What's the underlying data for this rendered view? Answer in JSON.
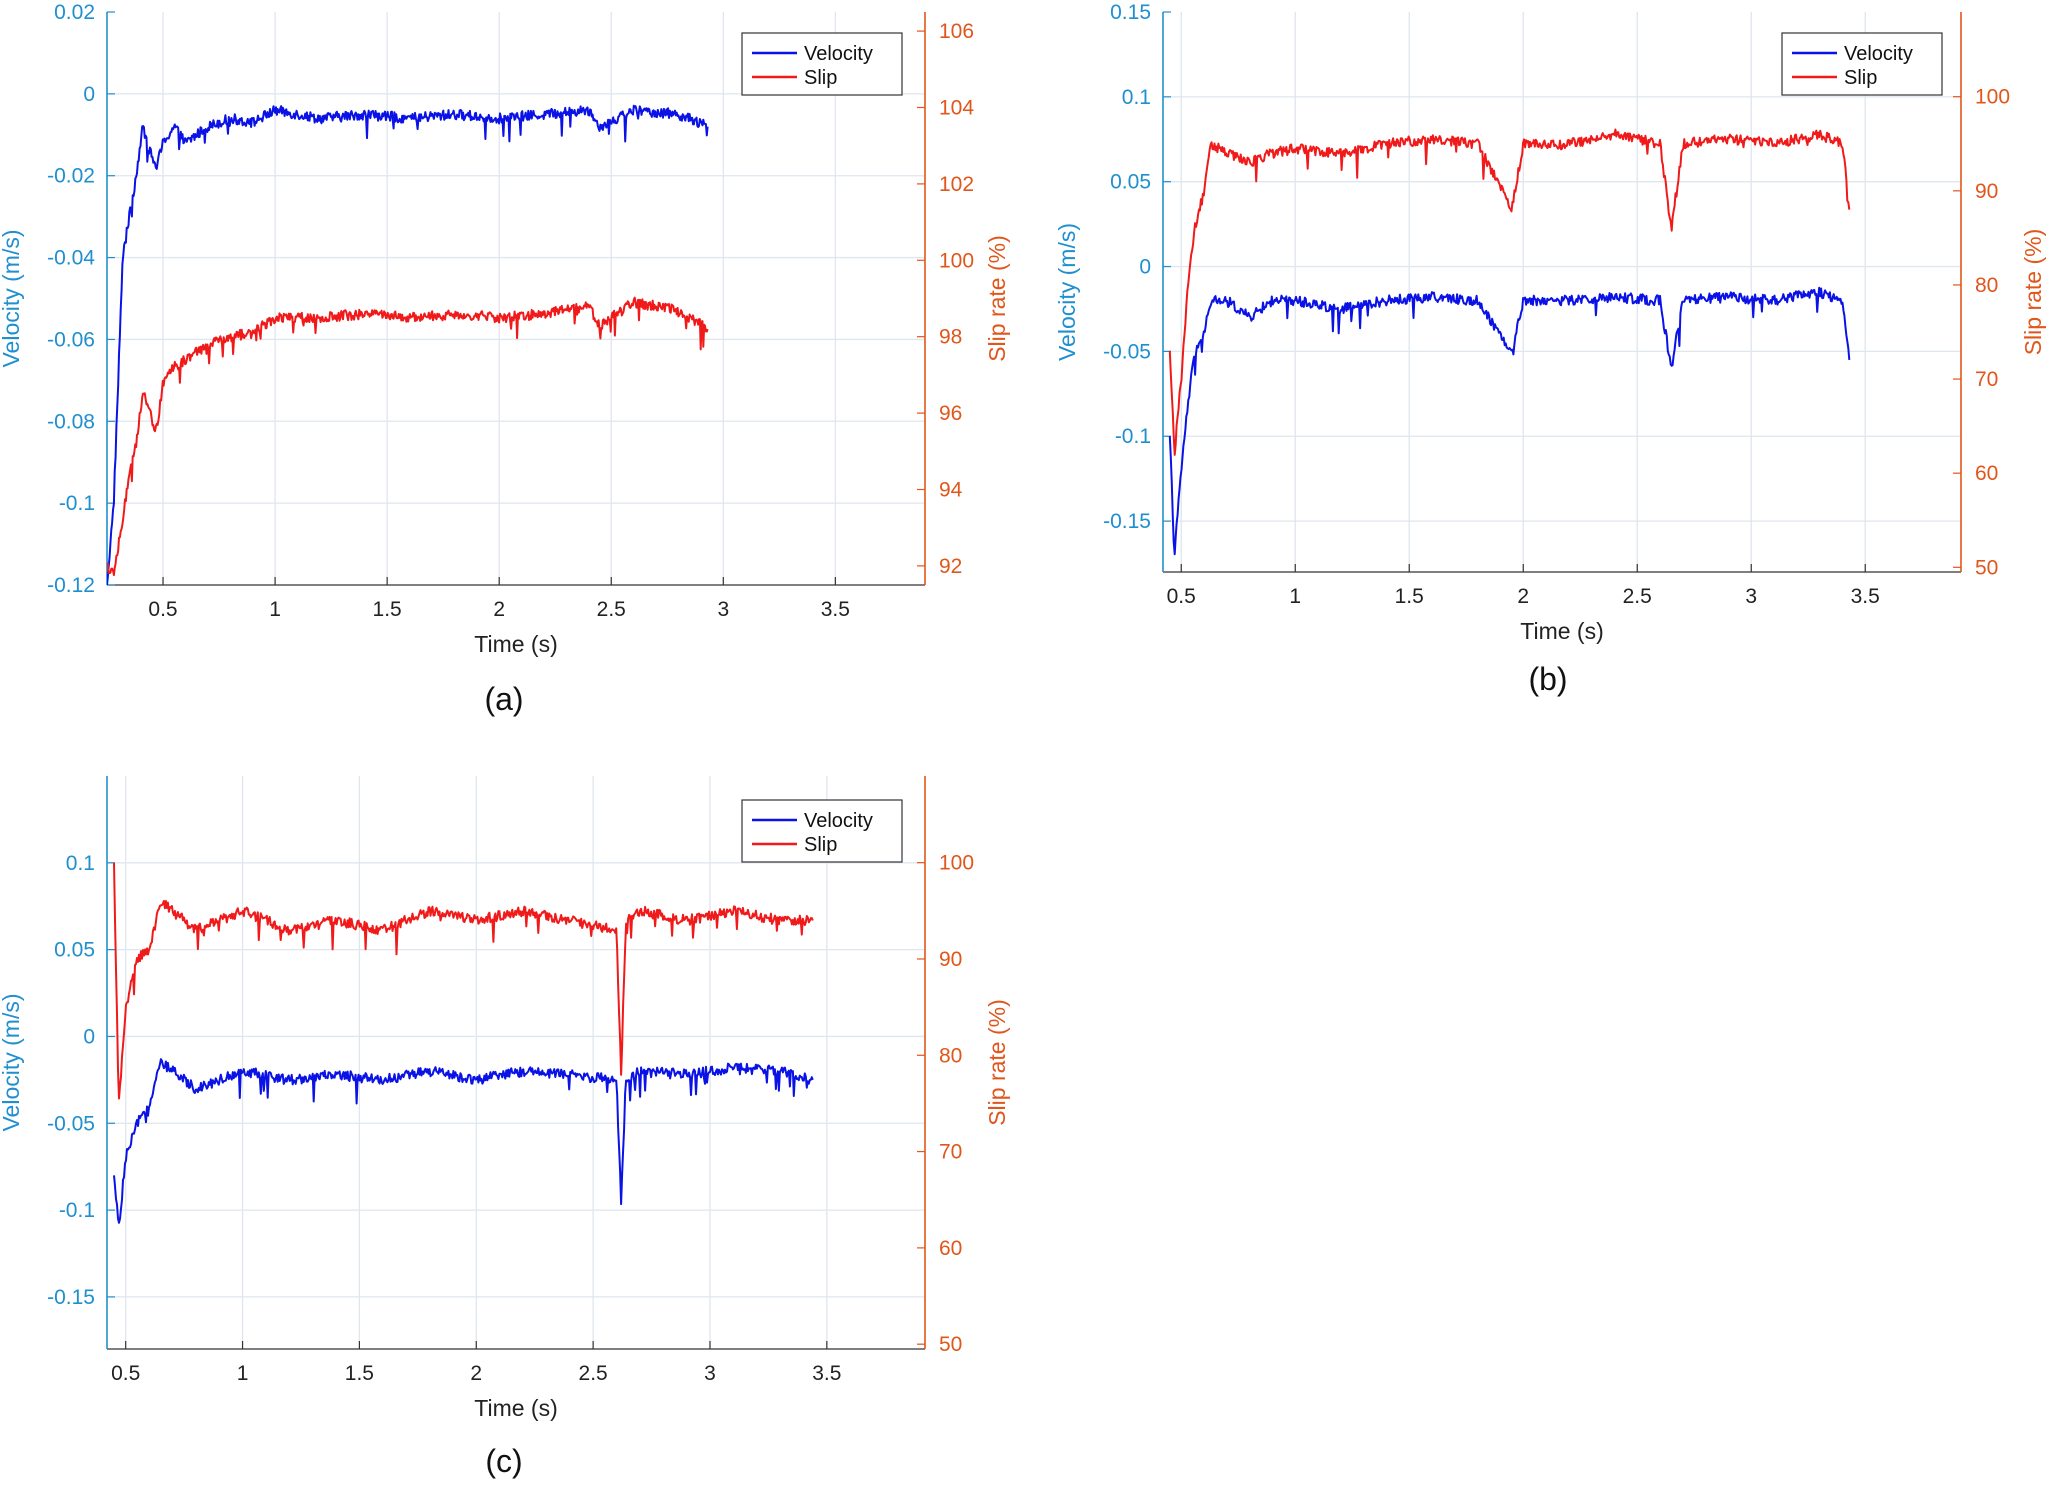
{
  "colors": {
    "left_axis": "#1f8fcf",
    "right_axis": "#e0561b",
    "velocity": "#0a12e6",
    "slip": "#f01a1a",
    "grid": "#dfe6ee"
  },
  "chart_data": [
    {
      "panel": "(a)",
      "type": "line",
      "xlabel": "Time (s)",
      "ylabel": "Velocity (m/s)",
      "y2label": "Slip rate (%)",
      "xlim": [
        0.25,
        3.9
      ],
      "ylim": [
        -0.12,
        0.02
      ],
      "y2lim": [
        91.5,
        106.5
      ],
      "xticks": [
        0.5,
        1,
        1.5,
        2,
        2.5,
        3,
        3.5
      ],
      "xtick_labels": [
        "0.5",
        "1",
        "1.5",
        "2",
        "2.5",
        "3",
        "3.5"
      ],
      "yticks": [
        -0.12,
        -0.1,
        -0.08,
        -0.06,
        -0.04,
        -0.02,
        0,
        0.02
      ],
      "ytick_labels": [
        "-0.12",
        "-0.1",
        "-0.08",
        "-0.06",
        "-0.04",
        "-0.02",
        "0",
        "0.02"
      ],
      "y2ticks": [
        92,
        94,
        96,
        98,
        100,
        102,
        104,
        106
      ],
      "y2tick_labels": [
        "92",
        "94",
        "96",
        "98",
        "100",
        "102",
        "104",
        "106"
      ],
      "grid": true,
      "legend": "top-right",
      "series": [
        {
          "name": "Velocity",
          "axis": "left",
          "x": [
            0.25,
            0.28,
            0.32,
            0.35,
            0.38,
            0.41,
            0.44,
            0.47,
            0.5,
            0.55,
            0.6,
            0.7,
            0.8,
            0.9,
            1.0,
            1.2,
            1.4,
            1.6,
            1.8,
            2.0,
            2.2,
            2.4,
            2.45,
            2.6,
            2.8,
            2.93
          ],
          "y": [
            -0.12,
            -0.1,
            -0.04,
            -0.03,
            -0.02,
            -0.008,
            -0.014,
            -0.018,
            -0.012,
            -0.008,
            -0.012,
            -0.008,
            -0.006,
            -0.007,
            -0.004,
            -0.006,
            -0.005,
            -0.006,
            -0.005,
            -0.006,
            -0.005,
            -0.004,
            -0.008,
            -0.004,
            -0.005,
            -0.008
          ]
        },
        {
          "name": "Slip",
          "axis": "right",
          "x": [
            0.25,
            0.28,
            0.32,
            0.35,
            0.38,
            0.41,
            0.44,
            0.47,
            0.5,
            0.55,
            0.6,
            0.7,
            0.8,
            0.9,
            1.0,
            1.2,
            1.4,
            1.6,
            1.8,
            2.0,
            2.2,
            2.4,
            2.45,
            2.6,
            2.8,
            2.93
          ],
          "y": [
            92,
            91.8,
            93.2,
            94.5,
            95.2,
            96.6,
            96.0,
            95.5,
            96.8,
            97.2,
            97.4,
            97.8,
            98.0,
            98.1,
            98.5,
            98.5,
            98.6,
            98.5,
            98.6,
            98.5,
            98.6,
            98.8,
            98.3,
            98.9,
            98.7,
            98.2
          ]
        }
      ]
    },
    {
      "panel": "(b)",
      "type": "line",
      "xlabel": "Time (s)",
      "ylabel": "Velocity (m/s)",
      "y2label": "Slip rate (%)",
      "xlim": [
        0.42,
        3.92
      ],
      "ylim": [
        -0.18,
        0.15
      ],
      "y2lim": [
        49.5,
        109
      ],
      "xticks": [
        0.5,
        1,
        1.5,
        2,
        2.5,
        3,
        3.5
      ],
      "xtick_labels": [
        "0.5",
        "1",
        "1.5",
        "2",
        "2.5",
        "3",
        "3.5"
      ],
      "yticks": [
        -0.15,
        -0.1,
        -0.05,
        0,
        0.05,
        0.1,
        0.15
      ],
      "ytick_labels": [
        "-0.15",
        "-0.1",
        "-0.05",
        "0",
        "0.05",
        "0.1",
        "0.15"
      ],
      "y2ticks": [
        50,
        60,
        70,
        80,
        90,
        100
      ],
      "y2tick_labels": [
        "50",
        "60",
        "70",
        "80",
        "90",
        "100"
      ],
      "grid": true,
      "legend": "top-right",
      "series": [
        {
          "name": "Velocity",
          "axis": "left",
          "x": [
            0.45,
            0.47,
            0.5,
            0.53,
            0.56,
            0.6,
            0.63,
            0.7,
            0.8,
            0.9,
            1.0,
            1.2,
            1.4,
            1.6,
            1.8,
            1.95,
            2.0,
            2.2,
            2.4,
            2.6,
            2.65,
            2.7,
            2.9,
            3.1,
            3.3,
            3.4,
            3.43
          ],
          "y": [
            -0.1,
            -0.17,
            -0.12,
            -0.08,
            -0.05,
            -0.04,
            -0.02,
            -0.02,
            -0.03,
            -0.02,
            -0.02,
            -0.025,
            -0.02,
            -0.018,
            -0.02,
            -0.05,
            -0.02,
            -0.02,
            -0.018,
            -0.02,
            -0.06,
            -0.02,
            -0.018,
            -0.02,
            -0.015,
            -0.02,
            -0.055
          ]
        },
        {
          "name": "Slip",
          "axis": "right",
          "x": [
            0.45,
            0.47,
            0.5,
            0.53,
            0.56,
            0.6,
            0.63,
            0.7,
            0.8,
            0.9,
            1.0,
            1.2,
            1.4,
            1.6,
            1.8,
            1.95,
            2.0,
            2.2,
            2.4,
            2.6,
            2.65,
            2.7,
            2.9,
            3.1,
            3.3,
            3.4,
            3.43
          ],
          "y": [
            73,
            62,
            70,
            80,
            86,
            90,
            95,
            94,
            93,
            94,
            94.5,
            94,
            95,
            95.5,
            95,
            88,
            95,
            95,
            96,
            95,
            86,
            95,
            95.5,
            95,
            96,
            95,
            88
          ]
        }
      ]
    },
    {
      "panel": "(c)",
      "type": "line",
      "xlabel": "Time (s)",
      "ylabel": "Velocity (m/s)",
      "y2label": "Slip rate (%)",
      "xlim": [
        0.42,
        3.92
      ],
      "ylim": [
        -0.18,
        0.15
      ],
      "y2lim": [
        49.5,
        109
      ],
      "xticks": [
        0.5,
        1,
        1.5,
        2,
        2.5,
        3,
        3.5
      ],
      "xtick_labels": [
        "0.5",
        "1",
        "1.5",
        "2",
        "2.5",
        "3",
        "3.5"
      ],
      "yticks": [
        -0.15,
        -0.1,
        -0.05,
        0,
        0.05,
        0.1
      ],
      "ytick_labels": [
        "-0.15",
        "-0.1",
        "-0.05",
        "0",
        "0.05",
        "0.1"
      ],
      "y2ticks": [
        50,
        60,
        70,
        80,
        90,
        100
      ],
      "y2tick_labels": [
        "50",
        "60",
        "70",
        "80",
        "90",
        "100"
      ],
      "grid": true,
      "legend": "top-right",
      "series": [
        {
          "name": "Velocity",
          "axis": "left",
          "x": [
            0.45,
            0.47,
            0.5,
            0.55,
            0.6,
            0.65,
            0.7,
            0.8,
            0.9,
            1.0,
            1.2,
            1.4,
            1.6,
            1.8,
            2.0,
            2.2,
            2.4,
            2.6,
            2.62,
            2.64,
            2.7,
            2.9,
            3.1,
            3.3,
            3.44
          ],
          "y": [
            -0.08,
            -0.11,
            -0.07,
            -0.05,
            -0.04,
            -0.015,
            -0.02,
            -0.03,
            -0.025,
            -0.02,
            -0.025,
            -0.022,
            -0.025,
            -0.02,
            -0.025,
            -0.02,
            -0.022,
            -0.025,
            -0.095,
            -0.025,
            -0.02,
            -0.022,
            -0.018,
            -0.02,
            -0.025
          ]
        },
        {
          "name": "Slip",
          "axis": "right",
          "x": [
            0.45,
            0.47,
            0.5,
            0.55,
            0.6,
            0.65,
            0.7,
            0.8,
            0.9,
            1.0,
            1.2,
            1.4,
            1.6,
            1.8,
            2.0,
            2.2,
            2.4,
            2.6,
            2.62,
            2.64,
            2.7,
            2.9,
            3.1,
            3.3,
            3.44
          ],
          "y": [
            100,
            75,
            85,
            90,
            91,
            96,
            95,
            93,
            94,
            95,
            93,
            94,
            93,
            95,
            94,
            95,
            94,
            93,
            78,
            94,
            95,
            94,
            95,
            94,
            94
          ]
        }
      ]
    }
  ]
}
